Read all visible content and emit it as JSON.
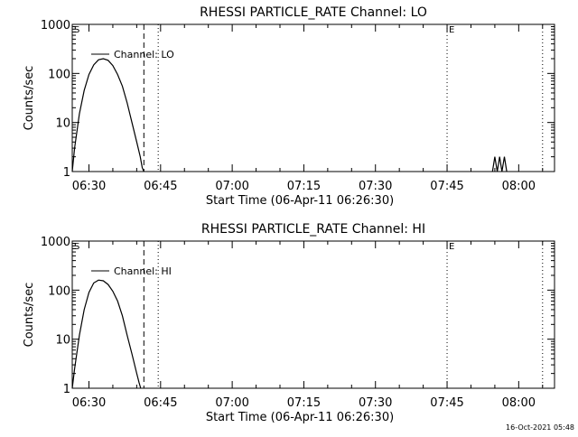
{
  "footer": {
    "timestamp": "16-Oct-2021 05:48"
  },
  "chart_data": [
    {
      "type": "line",
      "title": "RHESSI PARTICLE_RATE Channel: LO",
      "xlabel": "Start Time (06-Apr-11 06:26:30)",
      "ylabel": "Counts/sec",
      "y_scale": "log",
      "ylim": [
        1,
        1000
      ],
      "xlim": [
        "06:26:30",
        "08:07:30"
      ],
      "x_ticks": [
        "06:30",
        "06:45",
        "07:00",
        "07:15",
        "07:30",
        "07:45",
        "08:00"
      ],
      "y_ticks": [
        "1",
        "10",
        "100",
        "1000"
      ],
      "marker_labels": {
        "start": "S",
        "end": "E"
      },
      "vertical_lines": [
        {
          "x": "06:41:30",
          "style": "dashed"
        },
        {
          "x": "06:44:30",
          "style": "dotted"
        },
        {
          "x": "07:45:00",
          "style": "dotted"
        },
        {
          "x": "08:05:00",
          "style": "dotted"
        }
      ],
      "legend": {
        "label": "Channel: LO",
        "placement": "top-left"
      },
      "series": [
        {
          "name": "Channel: LO",
          "x": [
            "06:26:30",
            "06:27:00",
            "06:28:00",
            "06:29:00",
            "06:30:00",
            "06:31:00",
            "06:32:00",
            "06:33:00",
            "06:34:00",
            "06:35:00",
            "06:36:00",
            "06:37:00",
            "06:38:00",
            "06:39:00",
            "06:40:00",
            "06:40:45",
            "06:41:10",
            "06:41:30"
          ],
          "y": [
            1,
            3,
            15,
            45,
            95,
            150,
            190,
            200,
            185,
            145,
            95,
            55,
            25,
            10,
            4,
            2,
            1.2,
            1
          ]
        },
        {
          "name": "Channel: LO",
          "x": [
            "07:54:30",
            "07:55:00",
            "07:55:30",
            "07:56:00",
            "07:56:30",
            "07:57:00",
            "07:57:30"
          ],
          "y": [
            1,
            2,
            1,
            2,
            1,
            2,
            1
          ]
        }
      ]
    },
    {
      "type": "line",
      "title": "RHESSI PARTICLE_RATE Channel: HI",
      "xlabel": "Start Time (06-Apr-11 06:26:30)",
      "ylabel": "Counts/sec",
      "y_scale": "log",
      "ylim": [
        1,
        1000
      ],
      "xlim": [
        "06:26:30",
        "08:07:30"
      ],
      "x_ticks": [
        "06:30",
        "06:45",
        "07:00",
        "07:15",
        "07:30",
        "07:45",
        "08:00"
      ],
      "y_ticks": [
        "1",
        "10",
        "100",
        "1000"
      ],
      "marker_labels": {
        "start": "S",
        "end": "E"
      },
      "vertical_lines": [
        {
          "x": "06:41:30",
          "style": "dashed"
        },
        {
          "x": "06:44:30",
          "style": "dotted"
        },
        {
          "x": "07:45:00",
          "style": "dotted"
        },
        {
          "x": "08:05:00",
          "style": "dotted"
        }
      ],
      "legend": {
        "label": "Channel: HI",
        "placement": "top-left"
      },
      "series": [
        {
          "name": "Channel: HI",
          "x": [
            "06:26:30",
            "06:27:00",
            "06:28:00",
            "06:29:00",
            "06:30:00",
            "06:31:00",
            "06:32:00",
            "06:33:00",
            "06:34:00",
            "06:35:00",
            "06:36:00",
            "06:37:00",
            "06:38:00",
            "06:39:00",
            "06:40:00",
            "06:40:30",
            "06:40:50"
          ],
          "y": [
            1,
            2.5,
            12,
            40,
            90,
            140,
            160,
            155,
            130,
            95,
            60,
            30,
            12,
            5,
            2,
            1.3,
            1
          ]
        }
      ]
    }
  ]
}
